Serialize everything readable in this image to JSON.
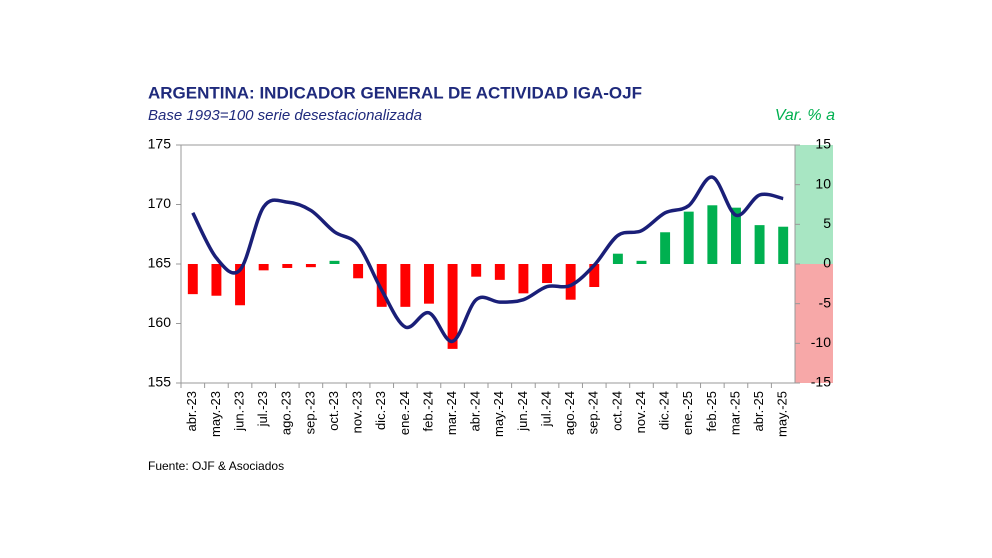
{
  "chart_data": {
    "type": "combo",
    "title": "ARGENTINA: INDICADOR GENERAL DE ACTIVIDAD IGA-OJF",
    "subtitle": "Base 1993=100 serie desestacionalizada",
    "y2_label": "Var. % a",
    "source": "Fuente: OJF & Asociados",
    "categories": [
      "abr.-23",
      "may.-23",
      "jun.-23",
      "jul.-23",
      "ago.-23",
      "sep.-23",
      "oct.-23",
      "nov.-23",
      "dic.-23",
      "ene.-24",
      "feb.-24",
      "mar.-24",
      "abr.-24",
      "may.-24",
      "jun.-24",
      "jul.-24",
      "ago.-24",
      "sep.-24",
      "oct.-24",
      "nov.-24",
      "dic.-24",
      "ene.-25",
      "feb.-25",
      "mar.-25",
      "abr.-25",
      "may.-25"
    ],
    "series": [
      {
        "type": "line",
        "color": "#1a1f78",
        "axis": "y",
        "values": [
          169.3,
          165.5,
          164.5,
          169.8,
          170.2,
          169.5,
          167.7,
          166.6,
          162.8,
          159.7,
          160.9,
          158.5,
          162.0,
          161.8,
          162.0,
          163.1,
          163.2,
          164.9,
          167.4,
          167.8,
          169.3,
          169.9,
          172.3,
          169.1,
          170.8,
          170.5
        ]
      },
      {
        "type": "bar",
        "color_positive": "#00b050",
        "color_negative": "#ff0000",
        "axis": "y2",
        "values": [
          -3.8,
          -4.0,
          -5.2,
          -0.8,
          -0.5,
          -0.4,
          0.4,
          -1.8,
          -5.4,
          -5.4,
          -5.0,
          -10.7,
          -1.6,
          -2.0,
          -3.7,
          -2.4,
          -4.5,
          -2.9,
          1.3,
          0.4,
          4.0,
          6.6,
          7.4,
          7.1,
          4.9,
          4.7
        ]
      }
    ],
    "ylim": [
      155,
      175
    ],
    "yticks": [
      155,
      160,
      165,
      170,
      175
    ],
    "y2lim": [
      -15,
      15
    ],
    "y2ticks": [
      -15,
      -10,
      -5,
      0,
      5,
      10,
      15
    ],
    "y2_band_colors": {
      "positive": "#a8e6c3",
      "negative": "#f7a8a8"
    },
    "grid": false
  }
}
